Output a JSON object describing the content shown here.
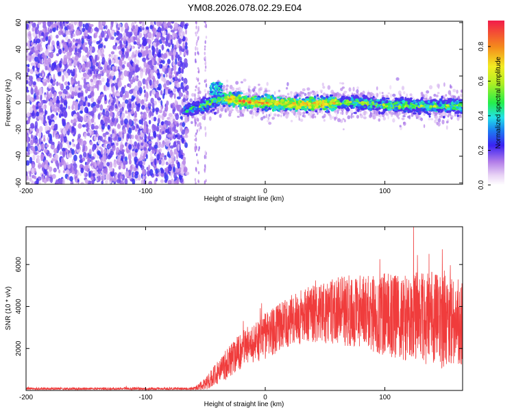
{
  "title": "YM08.2026.078.02.29.E04",
  "chart_data": [
    {
      "type": "heatmap",
      "name": "spectrogram",
      "xlabel": "Height of straight line (km)",
      "ylabel": "Frequency (Hz)",
      "xlim": [
        -200,
        165
      ],
      "ylim": [
        -61,
        61
      ],
      "xticks": [
        -200,
        -100,
        0,
        100
      ],
      "yticks": [
        -60,
        -40,
        -20,
        0,
        20,
        40,
        60
      ],
      "colorbar": {
        "label": "Normalized spectral amplitude",
        "range": [
          0,
          0.95
        ],
        "ticks": [
          0.0,
          0.2,
          0.4,
          0.6,
          0.8
        ]
      },
      "noise_region_x": [
        -200,
        -65
      ],
      "signal_region_x": [
        -68,
        165
      ],
      "signal_ridge": [
        {
          "x": -68,
          "f": -6
        },
        {
          "x": -60,
          "f": -4
        },
        {
          "x": -50,
          "f": -2
        },
        {
          "x": -42,
          "f": 2
        },
        {
          "x": -35,
          "f": 3
        },
        {
          "x": -25,
          "f": 2
        },
        {
          "x": -10,
          "f": 0
        },
        {
          "x": 0,
          "f": 0
        },
        {
          "x": 20,
          "f": -1
        },
        {
          "x": 40,
          "f": -1
        },
        {
          "x": 60,
          "f": 0
        },
        {
          "x": 80,
          "f": 0
        },
        {
          "x": 100,
          "f": -2
        },
        {
          "x": 120,
          "f": -2
        },
        {
          "x": 140,
          "f": -3
        },
        {
          "x": 165,
          "f": -2
        }
      ],
      "peak_amplitude_x_range": [
        -35,
        60
      ]
    },
    {
      "type": "line",
      "name": "snr",
      "xlabel": "Height of straight line (km)",
      "ylabel": "SNR (10 * v/v)",
      "xlim": [
        -200,
        165
      ],
      "ylim": [
        0,
        7800
      ],
      "xticks": [
        -200,
        -100,
        0,
        100
      ],
      "yticks": [
        2000,
        4000,
        6000
      ],
      "color": "#f03c3c",
      "envelope": [
        {
          "x": -200,
          "mean": 80,
          "spread": 60
        },
        {
          "x": -60,
          "mean": 80,
          "spread": 70
        },
        {
          "x": -50,
          "mean": 300,
          "spread": 300
        },
        {
          "x": -35,
          "mean": 1100,
          "spread": 700
        },
        {
          "x": -20,
          "mean": 1900,
          "spread": 900
        },
        {
          "x": 0,
          "mean": 2600,
          "spread": 1100
        },
        {
          "x": 20,
          "mean": 3300,
          "spread": 1200
        },
        {
          "x": 40,
          "mean": 3700,
          "spread": 1400
        },
        {
          "x": 60,
          "mean": 3800,
          "spread": 1600
        },
        {
          "x": 80,
          "mean": 3800,
          "spread": 1800
        },
        {
          "x": 100,
          "mean": 3600,
          "spread": 2000
        },
        {
          "x": 130,
          "mean": 3500,
          "spread": 2200
        },
        {
          "x": 150,
          "mean": 3300,
          "spread": 2300
        },
        {
          "x": 165,
          "mean": 3300,
          "spread": 2100
        }
      ]
    }
  ]
}
